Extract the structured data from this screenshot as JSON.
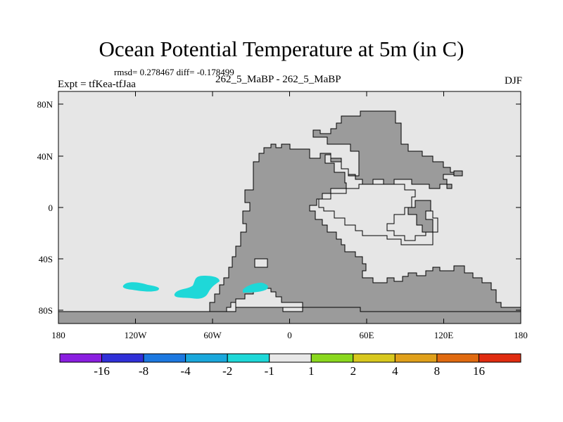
{
  "title": "Ocean Potential Temperature at 5m (in C)",
  "stats": "rmsd= 0.278467 diff= -0.178499",
  "experiment": "Expt = tfKea-tfJaa",
  "run_label": "262_5_MaBP - 262_5_MaBP",
  "season": "DJF",
  "map": {
    "x_ticks": [
      "180",
      "120W",
      "60W",
      "0",
      "60E",
      "120E",
      "180"
    ],
    "y_ticks": [
      "80N",
      "40N",
      "0",
      "40S",
      "80S"
    ],
    "ocean_color": "#e6e6e6",
    "land_color": "#9b9b9b",
    "anomaly_color": "#1ed8d8"
  },
  "colorbar": {
    "labels": [
      "-16",
      "-8",
      "-4",
      "-2",
      "-1",
      "1",
      "2",
      "4",
      "8",
      "16"
    ],
    "colors": [
      "#8a1ee0",
      "#3030d8",
      "#1c78e0",
      "#1aa8dc",
      "#1ed8d8",
      "#e8e8e8",
      "#8ad81e",
      "#d8c81e",
      "#e0a01a",
      "#e06a10",
      "#e02c10"
    ]
  }
}
